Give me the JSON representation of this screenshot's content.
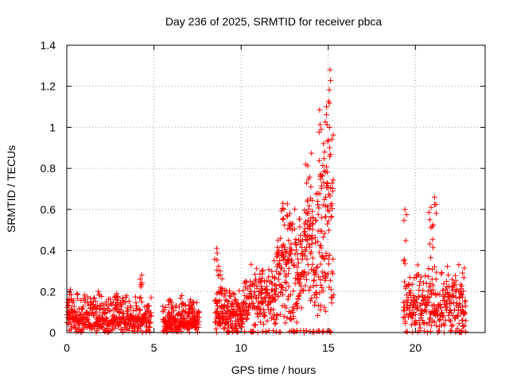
{
  "chart_data": {
    "type": "scatter",
    "title": "Day 236 of 2025, SRMTID for receiver pbca",
    "xlabel": "GPS time / hours",
    "ylabel": "SRMTID / TECUs",
    "xlim": [
      0,
      24
    ],
    "ylim": [
      0,
      1.4
    ],
    "x_ticks": [
      0,
      5,
      10,
      15,
      20
    ],
    "y_ticks": [
      0,
      0.2,
      0.4,
      0.6,
      0.8,
      1,
      1.2,
      1.4
    ],
    "x_tick_labels": [
      "0",
      "5",
      "10",
      "15",
      "20"
    ],
    "y_tick_labels": [
      "0",
      "0.2",
      "0.4",
      "0.6",
      "0.8",
      "1",
      "1.2",
      "1.4"
    ],
    "grid": true,
    "marker": "plus",
    "series": [
      {
        "name": "SRMTID",
        "color": "#ff0000",
        "segments": [
          {
            "range": [
              0.0,
              4.85
            ],
            "base": 0.04,
            "spread": 0.13,
            "count": 420,
            "peaks": [
              [
                0.2,
                0.21
              ],
              [
                1.8,
                0.2
              ],
              [
                2.9,
                0.17
              ],
              [
                4.3,
                0.28
              ]
            ]
          },
          {
            "range": [
              5.5,
              7.6
            ],
            "base": 0.03,
            "spread": 0.1,
            "count": 200,
            "peaks": [
              [
                5.9,
                0.16
              ],
              [
                6.6,
                0.18
              ],
              [
                7.1,
                0.16
              ]
            ]
          },
          {
            "range": [
              8.5,
              10.1
            ],
            "base": 0.05,
            "spread": 0.14,
            "count": 170,
            "peaks": [
              [
                8.6,
                0.41
              ],
              [
                8.8,
                0.3
              ]
            ]
          },
          {
            "range": [
              10.1,
              12.0
            ],
            "base": 0.12,
            "spread": 0.14,
            "count": 160,
            "peaks": [
              [
                11.2,
                0.3
              ],
              [
                11.9,
                0.35
              ]
            ]
          },
          {
            "range": [
              12.0,
              13.6
            ],
            "base": 0.22,
            "spread": 0.25,
            "count": 170,
            "peaks": [
              [
                12.4,
                0.63
              ],
              [
                12.8,
                0.58
              ],
              [
                13.3,
                0.45
              ]
            ]
          },
          {
            "range": [
              13.6,
              14.4
            ],
            "base": 0.3,
            "spread": 0.35,
            "count": 90,
            "peaks": [
              [
                13.7,
                0.82
              ],
              [
                14.0,
                0.71
              ]
            ]
          },
          {
            "range": [
              14.4,
              15.3
            ],
            "base": 0.4,
            "spread": 0.5,
            "count": 110,
            "peaks": [
              [
                14.6,
                0.99
              ],
              [
                14.9,
                1.1
              ],
              [
                15.1,
                1.28
              ]
            ]
          },
          {
            "range": [
              19.3,
              22.9
            ],
            "base": 0.08,
            "spread": 0.2,
            "count": 300,
            "peaks": [
              [
                19.4,
                0.6
              ],
              [
                20.9,
                0.61
              ],
              [
                21.1,
                0.66
              ],
              [
                22.7,
                0.29
              ]
            ]
          }
        ]
      }
    ]
  }
}
